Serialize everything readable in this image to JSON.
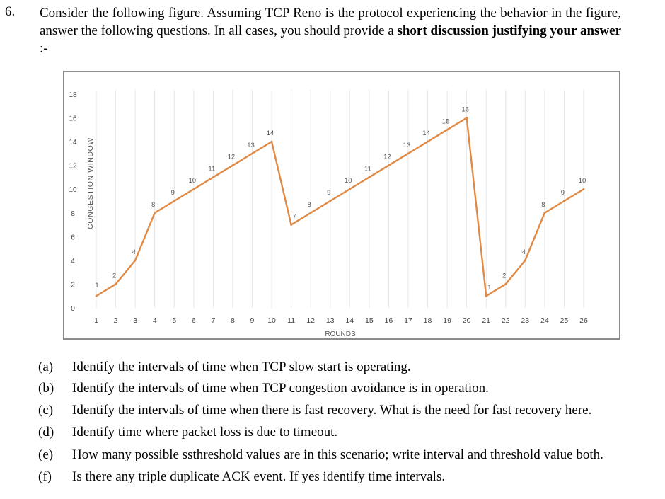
{
  "question": {
    "number": "6.",
    "text_before": "Consider the following figure. Assuming TCP Reno is the protocol experiencing the behavior in the figure, answer the following questions. In all cases, you should provide a ",
    "text_bold": "short discussion justifying your answer",
    "text_after": " :-"
  },
  "chart_data": {
    "type": "line",
    "title": "",
    "xlabel": "ROUNDS",
    "ylabel": "CONGESTION WINDOW",
    "xlim": [
      1,
      26
    ],
    "ylim": [
      0,
      18
    ],
    "x_ticks": [
      "1",
      "2",
      "3",
      "4",
      "5",
      "6",
      "7",
      "8",
      "9",
      "10",
      "11",
      "12",
      "13",
      "14",
      "15",
      "16",
      "17",
      "18",
      "19",
      "20",
      "21",
      "22",
      "23",
      "24",
      "25",
      "26"
    ],
    "y_ticks": [
      "0",
      "2",
      "4",
      "6",
      "8",
      "10",
      "12",
      "14",
      "16",
      "18"
    ],
    "grid": "vertical",
    "line_color": "#e08a46",
    "grid_color": "#e6e6e6",
    "series": [
      {
        "x": [
          1,
          2,
          3,
          4,
          5,
          6,
          7,
          8,
          9,
          10,
          11,
          12,
          13,
          14,
          15,
          16,
          17,
          18,
          19,
          20,
          21,
          22,
          23,
          24,
          25,
          26
        ],
        "values": [
          1,
          2,
          4,
          8,
          9,
          10,
          11,
          12,
          13,
          14,
          7,
          8,
          9,
          10,
          11,
          12,
          13,
          14,
          15,
          16,
          1,
          2,
          4,
          8,
          9,
          10
        ],
        "labels": [
          "1",
          "2",
          "4",
          "8",
          "9",
          "10",
          "11",
          "12",
          "13",
          "14",
          "7",
          "8",
          "9",
          "10",
          "11",
          "12",
          "13",
          "14",
          "15",
          "16",
          "1",
          "2",
          "4",
          "8",
          "9",
          "10"
        ]
      }
    ]
  },
  "parts": [
    {
      "label": "(a)",
      "text": "Identify the intervals of time when TCP slow start is operating."
    },
    {
      "label": "(b)",
      "text": "Identify the intervals of time when TCP congestion avoidance is in operation."
    },
    {
      "label": "(c)",
      "text": "Identify the intervals of time when there is fast recovery. What is the need for fast recovery here."
    },
    {
      "label": "(d)",
      "text": "Identify time where packet loss is due to timeout."
    },
    {
      "label": "(e)",
      "text": "How many possible ssthreshold values are in this scenario; write interval and threshold value both."
    },
    {
      "label": "(f)",
      "text": "Is there any triple duplicate ACK event. If yes identify time intervals."
    }
  ]
}
